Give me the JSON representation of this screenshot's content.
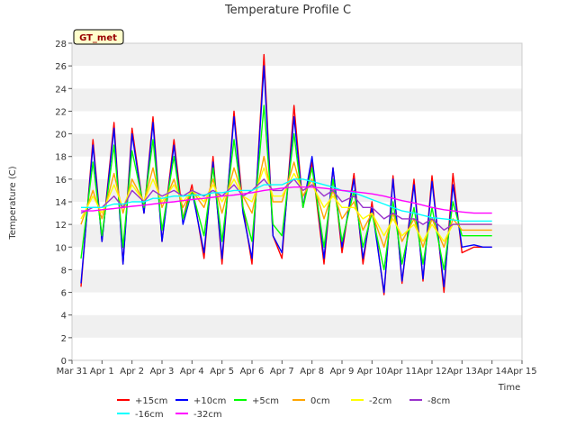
{
  "chart_data": {
    "type": "line",
    "title": "Temperature Profile C",
    "xlabel": "Time",
    "ylabel": "Temperature (C)",
    "annotation": "GT_met",
    "x_ticks": [
      "Mar 31",
      "Apr 1",
      "Apr 2",
      "Apr 3",
      "Apr 4",
      "Apr 5",
      "Apr 6",
      "Apr 7",
      "Apr 8",
      "Apr 9",
      "Apr 10",
      "Apr 11",
      "Apr 12",
      "Apr 13",
      "Apr 14",
      "Apr 15"
    ],
    "xlim": [
      0,
      15
    ],
    "ylim": [
      0,
      28
    ],
    "y_ticks": [
      "0",
      "2",
      "4",
      "6",
      "8",
      "10",
      "12",
      "14",
      "16",
      "18",
      "20",
      "22",
      "24",
      "26",
      "28"
    ],
    "grid": true,
    "legend_position": "bottom",
    "x": [
      0.3,
      0.7,
      1.0,
      1.4,
      1.7,
      2.0,
      2.4,
      2.7,
      3.0,
      3.4,
      3.7,
      4.0,
      4.4,
      4.7,
      5.0,
      5.4,
      5.7,
      6.0,
      6.4,
      6.7,
      7.0,
      7.4,
      7.7,
      8.0,
      8.4,
      8.7,
      9.0,
      9.4,
      9.7,
      10.0,
      10.4,
      10.7,
      11.0,
      11.4,
      11.7,
      12.0,
      12.4,
      12.7,
      13.0,
      13.4,
      13.7,
      14.0
    ],
    "series": [
      {
        "name": "+15cm",
        "color": "#ff0000",
        "values": [
          6.5,
          19.5,
          10.5,
          21,
          8.5,
          20.5,
          13,
          21.5,
          10.5,
          19.5,
          12.5,
          15.5,
          9,
          18,
          8.5,
          22,
          13.5,
          8.5,
          27,
          11,
          9,
          22.5,
          13.5,
          17.5,
          8.5,
          17,
          9.5,
          16.5,
          8.5,
          14,
          5.8,
          16.3,
          6.8,
          16,
          7,
          16.3,
          6,
          16.5,
          9.5,
          10,
          10,
          10
        ]
      },
      {
        "name": "+10cm",
        "color": "#0000ff",
        "values": [
          6.8,
          19,
          10.5,
          20.5,
          8.5,
          20,
          13,
          21,
          10.5,
          19,
          12,
          15,
          9.5,
          17.5,
          9,
          21.5,
          13,
          9,
          26,
          11,
          9.5,
          21.5,
          13.5,
          18,
          9,
          17,
          10,
          16,
          9,
          13.5,
          6,
          16,
          7,
          15.5,
          7.2,
          15.8,
          6.5,
          15.5,
          10,
          10.2,
          10,
          10
        ]
      },
      {
        "name": "+5cm",
        "color": "#00ff00",
        "values": [
          9,
          17.5,
          11,
          19,
          10,
          18.5,
          13.5,
          19.5,
          11.5,
          18,
          12.5,
          15,
          11,
          17,
          10.5,
          19.5,
          13.5,
          10.5,
          22.5,
          12,
          11,
          20,
          13.5,
          17,
          10,
          16,
          10.5,
          15,
          10,
          13,
          8,
          14,
          8.5,
          13.5,
          8.5,
          13.5,
          8,
          14,
          11,
          11,
          11,
          11
        ]
      },
      {
        "name": "0cm",
        "color": "#ffa500",
        "values": [
          12,
          15,
          12.5,
          16.5,
          13,
          16,
          14,
          17,
          13.5,
          16,
          13.5,
          15,
          13.5,
          16,
          13,
          17,
          14.5,
          13,
          18,
          14,
          14,
          17.5,
          14.5,
          16,
          12.5,
          15,
          12.5,
          14,
          11.5,
          13,
          10,
          13,
          10.5,
          12.5,
          10,
          12.5,
          10,
          12.5,
          11.5,
          11.5,
          11.5,
          11.5
        ]
      },
      {
        "name": "-2cm",
        "color": "#ffff00",
        "values": [
          12.5,
          14.5,
          13,
          15.5,
          13.5,
          15.5,
          14,
          16,
          14,
          15.5,
          14,
          15,
          14,
          15.5,
          14,
          16,
          14.5,
          14,
          17,
          14.5,
          14.5,
          16.5,
          15,
          15.5,
          13.5,
          14.5,
          13.5,
          13.5,
          12.5,
          13,
          11,
          12.5,
          11,
          12,
          10.5,
          12,
          10.5,
          12,
          12,
          12,
          12,
          12
        ]
      },
      {
        "name": "-8cm",
        "color": "#9932cc",
        "values": [
          13,
          13.5,
          13.5,
          14.5,
          13.5,
          15,
          14,
          15,
          14.5,
          15,
          14.5,
          15,
          14.5,
          15,
          14.5,
          15.5,
          14.5,
          15,
          16,
          15,
          15,
          16,
          15,
          15.5,
          14.5,
          15,
          14,
          14.5,
          13.5,
          13.5,
          12.5,
          13,
          12.5,
          12.5,
          12,
          12.5,
          11.5,
          12,
          12,
          12,
          12,
          12
        ]
      },
      {
        "name": "-16cm",
        "color": "#00ffff",
        "values": [
          13.5,
          13.5,
          13.5,
          13.8,
          13.8,
          14,
          14,
          14.3,
          14.3,
          14.5,
          14.5,
          14.6,
          14.6,
          14.8,
          14.8,
          15,
          15,
          15,
          15.5,
          15.5,
          15.5,
          16,
          16,
          15.8,
          15.5,
          15.3,
          15,
          14.8,
          14.5,
          14.2,
          13.8,
          13.5,
          13.2,
          13,
          12.8,
          12.6,
          12.5,
          12.4,
          12.3,
          12.3,
          12.3,
          12.3
        ]
      },
      {
        "name": "-32cm",
        "color": "#ff00ff",
        "values": [
          13.2,
          13.2,
          13.3,
          13.4,
          13.5,
          13.6,
          13.7,
          13.8,
          13.9,
          14,
          14.1,
          14.2,
          14.3,
          14.4,
          14.5,
          14.6,
          14.7,
          14.8,
          15,
          15.1,
          15.2,
          15.3,
          15.3,
          15.3,
          15.2,
          15.1,
          15,
          14.9,
          14.8,
          14.7,
          14.5,
          14.3,
          14.1,
          13.9,
          13.7,
          13.5,
          13.3,
          13.2,
          13.1,
          13,
          13,
          13
        ]
      }
    ]
  }
}
